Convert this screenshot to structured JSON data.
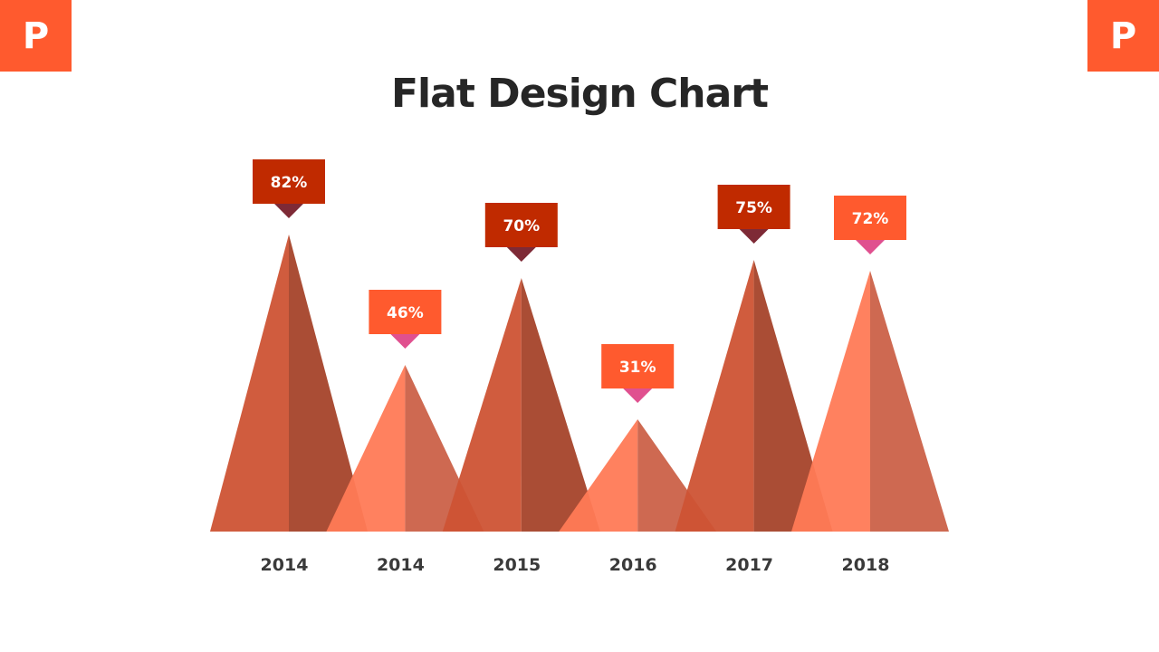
{
  "logo_text": "P",
  "chart_data": {
    "type": "bar",
    "title": "Flat Design Chart",
    "categories": [
      "2014",
      "2014",
      "2015",
      "2016",
      "2017",
      "2018"
    ],
    "values": [
      82,
      46,
      70,
      31,
      75,
      72
    ],
    "labels": [
      "82%",
      "46%",
      "70%",
      "31%",
      "75%",
      "72%"
    ],
    "styles": [
      "dark",
      "light",
      "dark",
      "light",
      "dark",
      "light"
    ]
  },
  "colors": {
    "dark_left": "#CD5334",
    "dark_right": "#A5432A",
    "light_left": "#FF7A56",
    "light_right": "#CB6148",
    "dark_box": "#C02A00",
    "light_box": "#FF5A2E",
    "dark_pointer": "#7E2A36",
    "light_pointer": "#E0508F",
    "brand": "#FF5A2E"
  }
}
